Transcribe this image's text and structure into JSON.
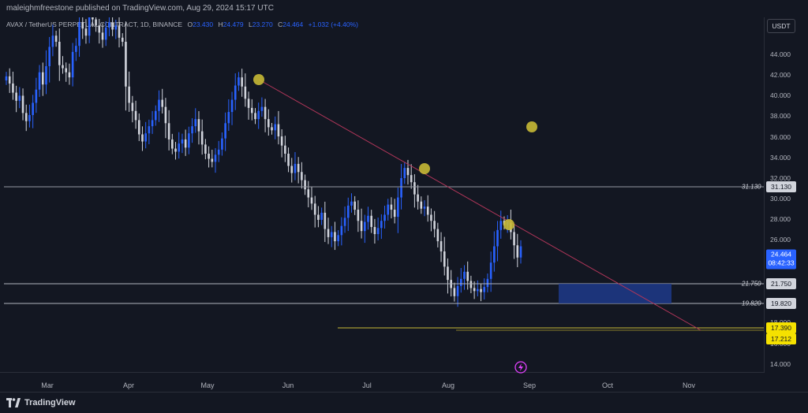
{
  "header": {
    "publisher_text": "maleighmfreestone published on TradingView.com, Aug 29, 2024 15:17 UTC"
  },
  "legend": {
    "symbol": "AVAX / TetherUS PERPETUAL CONTRACT, 1D, BINANCE",
    "open_label": "O",
    "open": "23.430",
    "high_label": "H",
    "high": "24.479",
    "low_label": "L",
    "low": "23.270",
    "close_label": "C",
    "close": "24.464",
    "change": "+1.032 (+4.40%)"
  },
  "currency": "USDT",
  "y_axis": {
    "ticks": [
      "44.000",
      "42.000",
      "40.000",
      "38.000",
      "36.000",
      "34.000",
      "32.000",
      "30.000",
      "28.000",
      "26.000",
      "18.000",
      "16.000",
      "14.000"
    ]
  },
  "price_levels": {
    "current_price": "24.464",
    "countdown": "08:42:33",
    "level_31": "31.130",
    "level_21": "21.750",
    "level_19": "19.820",
    "level_17a": "17.390",
    "level_17b": "17.212"
  },
  "x_axis": {
    "months": [
      "Mar",
      "Apr",
      "May",
      "Jun",
      "Jul",
      "Aug",
      "Sep",
      "Oct",
      "Nov"
    ]
  },
  "footer": {
    "brand": "TradingView"
  },
  "colors": {
    "background": "#131722",
    "up": "#2962ff",
    "down": "#d1d4dc",
    "trendline": "#b2365a",
    "marker": "#c8b935",
    "zone": "#1e3a8a"
  },
  "chart_data": {
    "type": "candlestick",
    "title": "AVAX / TetherUS PERPETUAL CONTRACT, 1D, BINANCE",
    "ylim": [
      13,
      47
    ],
    "horizontal_levels": [
      31.13,
      21.75,
      19.82,
      17.39,
      17.212
    ],
    "close_series": [
      41.2,
      40.5,
      39.6,
      38.8,
      39.3,
      37.6,
      36.8,
      37.4,
      38.6,
      39.9,
      41.6,
      40.4,
      42.2,
      44.1,
      45.2,
      44.6,
      42.3,
      42.0,
      41.6,
      41.1,
      43.6,
      44.2,
      46.5,
      45.9,
      45.2,
      47.0,
      46.8,
      46.2,
      45.5,
      44.8,
      46.0,
      46.5,
      45.8,
      46.2,
      45.0,
      44.6,
      40.2,
      38.6,
      37.8,
      36.9,
      35.5,
      34.8,
      35.6,
      36.3,
      36.9,
      37.8,
      38.9,
      38.2,
      36.6,
      35.0,
      34.1,
      33.8,
      34.6,
      35.0,
      34.2,
      35.6,
      36.3,
      37.0,
      35.8,
      34.5,
      33.6,
      33.1,
      32.8,
      33.5,
      34.0,
      35.1,
      36.6,
      37.7,
      38.9,
      40.3,
      41.1,
      40.2,
      39.0,
      38.1,
      37.6,
      37.0,
      37.8,
      38.2,
      37.0,
      36.2,
      35.9,
      36.5,
      35.3,
      34.4,
      33.6,
      32.4,
      31.7,
      32.6,
      31.8,
      31.0,
      30.1,
      29.3,
      28.7,
      27.6,
      27.1,
      27.8,
      26.2,
      25.4,
      25.9,
      25.0,
      25.6,
      26.5,
      27.3,
      28.5,
      28.9,
      28.1,
      27.0,
      26.0,
      26.9,
      27.5,
      26.4,
      25.7,
      26.3,
      27.0,
      27.6,
      28.6,
      28.1,
      27.4,
      29.3,
      31.2,
      32.2,
      31.5,
      30.8,
      29.6,
      28.9,
      28.2,
      28.4,
      27.6,
      27.0,
      26.2,
      25.0,
      24.0,
      22.5,
      21.2,
      20.4,
      19.6,
      20.6,
      21.3,
      22.0,
      21.1,
      20.4,
      20.1,
      20.3,
      20.0,
      20.5,
      21.3,
      22.9,
      24.5,
      26.1,
      27.0,
      26.6,
      26.9,
      25.9,
      24.6,
      23.4,
      24.5
    ]
  }
}
